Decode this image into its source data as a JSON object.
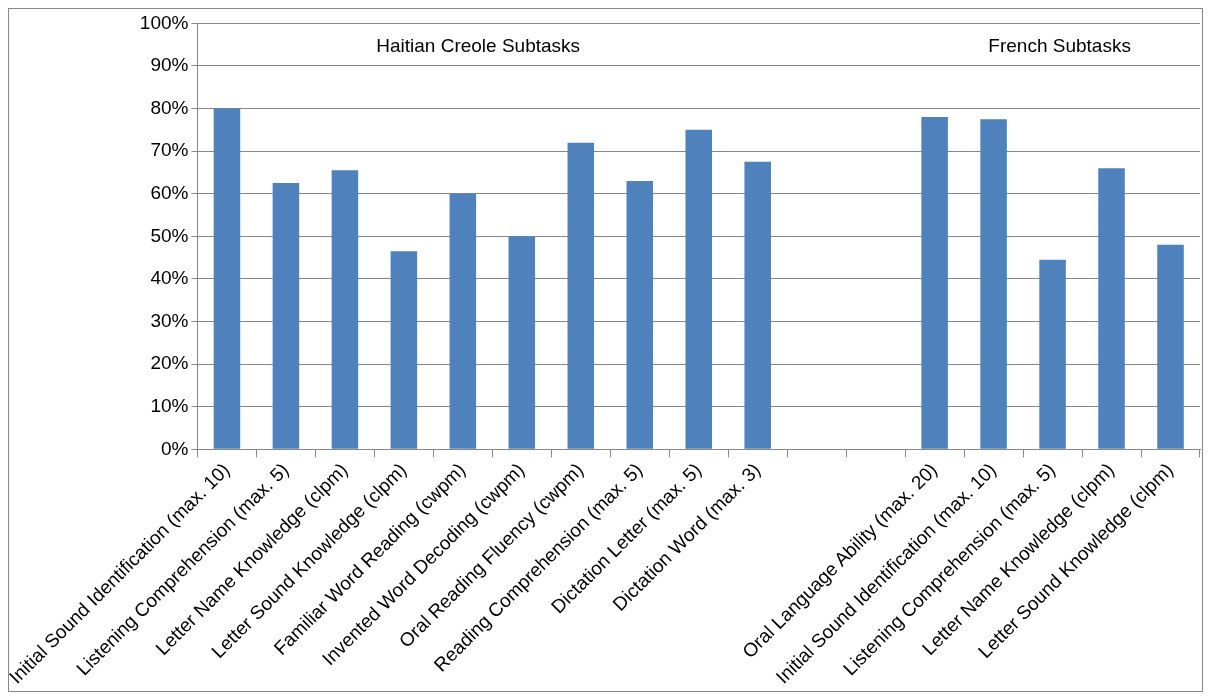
{
  "chart_data": {
    "type": "bar",
    "categories": [
      "Initial Sound Identification (max. 10)",
      "Listening Comprehension (max. 5)",
      "Letter Name Knowledge (clpm)",
      "Letter Sound Knowledge (clpm)",
      "Familiar Word Reading (cwpm)",
      "Invented Word Decoding (cwpm)",
      "Oral Reading Fluency (cwpm)",
      "Reading Comprehension (max. 5)",
      "Dictation Letter (max. 5)",
      "Dictation Word (max. 3)",
      null,
      null,
      "Oral Language Ability (max. 20)",
      "Initial Sound Identification (max. 10)",
      "Listening Comprehension (max. 5)",
      "Letter Name Knowledge (clpm)",
      "Letter Sound Knowledge (clpm)"
    ],
    "values": [
      80,
      62.5,
      65.5,
      46.5,
      60,
      50,
      72,
      63,
      75,
      67.5,
      null,
      null,
      78,
      77.5,
      44.5,
      66,
      48
    ],
    "color": "#4f81bd",
    "ylim": [
      0,
      100
    ],
    "yticks": [
      {
        "value": 0,
        "label": "0%"
      },
      {
        "value": 10,
        "label": "10%"
      },
      {
        "value": 20,
        "label": "20%"
      },
      {
        "value": 30,
        "label": "30%"
      },
      {
        "value": 40,
        "label": "40%"
      },
      {
        "value": 50,
        "label": "50%"
      },
      {
        "value": 60,
        "label": "60%"
      },
      {
        "value": 70,
        "label": "70%"
      },
      {
        "value": 80,
        "label": "80%"
      },
      {
        "value": 90,
        "label": "90%"
      },
      {
        "value": 100,
        "label": "100%"
      }
    ],
    "grid": "y",
    "annotations": [
      "Haitian Creole Subtasks",
      "French Subtasks"
    ]
  }
}
